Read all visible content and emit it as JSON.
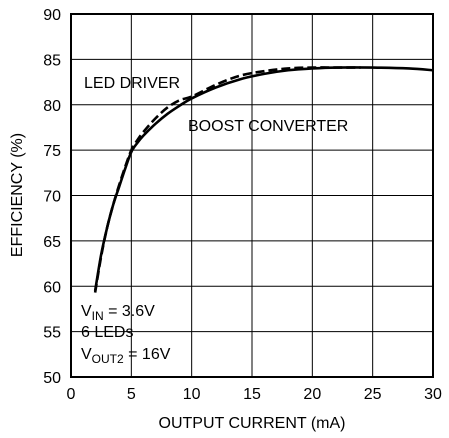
{
  "chart_data": {
    "type": "line",
    "xlabel": "OUTPUT CURRENT (mA)",
    "ylabel": "EFFICIENCY (%)",
    "xlim": [
      0,
      30
    ],
    "ylim": [
      50,
      90
    ],
    "x_ticks": [
      0,
      5,
      10,
      15,
      20,
      25,
      30
    ],
    "y_ticks": [
      50,
      55,
      60,
      65,
      70,
      75,
      80,
      85,
      90
    ],
    "grid": true,
    "series": [
      {
        "name": "BOOST CONVERTER",
        "style": "solid",
        "color": "#000000",
        "x": [
          2,
          2.5,
          3,
          3.5,
          4,
          4.5,
          5,
          5.5,
          6,
          7,
          8,
          9,
          10,
          12,
          14,
          16,
          18,
          20,
          22,
          25,
          28,
          30
        ],
        "y": [
          59.5,
          63.5,
          66.5,
          69,
          71,
          73,
          74.8,
          75.8,
          76.6,
          77.9,
          79,
          79.9,
          80.7,
          81.9,
          82.8,
          83.4,
          83.8,
          84.0,
          84.1,
          84.1,
          84.0,
          83.8
        ]
      },
      {
        "name": "LED DRIVER",
        "style": "dashed",
        "color": "#000000",
        "x": [
          2,
          2.5,
          3,
          3.5,
          4,
          4.5,
          5,
          5.5,
          6,
          7,
          8,
          9,
          10,
          12,
          14,
          16,
          18,
          20,
          22,
          24
        ],
        "y": [
          59.3,
          63.3,
          66.5,
          69,
          71.2,
          73.2,
          75,
          76.1,
          77,
          78.5,
          79.7,
          80.5,
          80.9,
          82.2,
          83.2,
          83.7,
          84.0,
          84.1,
          84.1,
          84.1
        ]
      }
    ],
    "annotations": {
      "led_driver_label": "LED DRIVER",
      "boost_label": "BOOST CONVERTER",
      "conditions": {
        "vin_prefix": "V",
        "vin_sub": "IN",
        "vin_value": " = 3.6V",
        "leds": "6 LEDs",
        "vout_prefix": "V",
        "vout_sub": "OUT2",
        "vout_value": " = 16V"
      }
    }
  }
}
